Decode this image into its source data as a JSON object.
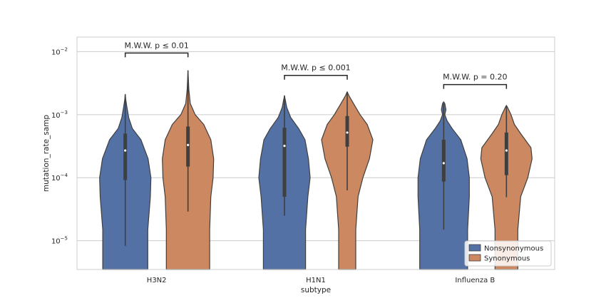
{
  "chart_data": {
    "type": "violin",
    "title": "",
    "xlabel": "subtype",
    "ylabel": "mutation_rate_samp",
    "yscale": "log",
    "ylim": [
      3.5e-06,
      0.017
    ],
    "yticks": [
      {
        "value": 1e-05,
        "base": "10",
        "exp": "−5"
      },
      {
        "value": 0.0001,
        "base": "10",
        "exp": "−4"
      },
      {
        "value": 0.001,
        "base": "10",
        "exp": "−3"
      },
      {
        "value": 0.01,
        "base": "10",
        "exp": "−2"
      }
    ],
    "grid": true,
    "legend_position": "lower-right",
    "categories": [
      "H3N2",
      "H1N1",
      "Influenza B"
    ],
    "series": [
      {
        "name": "Nonsynonymous",
        "color": "#5471a5",
        "violins": [
          {
            "min": 8.3e-06,
            "q1": 9.2e-05,
            "median": 0.00027,
            "q3": 0.0005,
            "max": 0.0021,
            "profile": [
              [
                3.5e-06,
                0.79
              ],
              [
                1.5e-05,
                0.79
              ],
              [
                5e-05,
                0.88
              ],
              [
                0.0001,
                0.9
              ],
              [
                0.0002,
                0.8
              ],
              [
                0.0004,
                0.55
              ],
              [
                0.0006,
                0.25
              ],
              [
                0.0009,
                0.12
              ],
              [
                0.0013,
                0.06
              ],
              [
                0.0017,
                0.02
              ],
              [
                0.0021,
                0.0
              ]
            ]
          },
          {
            "min": 2.5e-05,
            "q1": 5e-05,
            "median": 0.00032,
            "q3": 0.00062,
            "max": 0.002,
            "profile": [
              [
                3.5e-06,
                0.74
              ],
              [
                1.5e-05,
                0.74
              ],
              [
                5e-05,
                0.82
              ],
              [
                0.0001,
                0.9
              ],
              [
                0.0002,
                0.84
              ],
              [
                0.0004,
                0.72
              ],
              [
                0.0006,
                0.5
              ],
              [
                0.0009,
                0.22
              ],
              [
                0.0013,
                0.08
              ],
              [
                0.0017,
                0.03
              ],
              [
                0.002,
                0.0
              ]
            ]
          },
          {
            "min": 1.5e-05,
            "q1": 8.7e-05,
            "median": 0.00017,
            "q3": 0.0004,
            "max": 0.0015,
            "profile": [
              [
                3.5e-06,
                0.84
              ],
              [
                1.5e-05,
                0.84
              ],
              [
                5e-05,
                0.9
              ],
              [
                0.0001,
                0.9
              ],
              [
                0.0002,
                0.82
              ],
              [
                0.0004,
                0.6
              ],
              [
                0.0006,
                0.3
              ],
              [
                0.0008,
                0.12
              ],
              [
                0.001,
                0.04
              ],
              [
                0.0012,
                0.08
              ],
              [
                0.0015,
                0.04
              ],
              [
                0.0016,
                0.0
              ]
            ]
          }
        ]
      },
      {
        "name": "Synonymous",
        "color": "#cc8860",
        "violins": [
          {
            "min": 2.9e-05,
            "q1": 0.00015,
            "median": 0.00033,
            "q3": 0.00065,
            "max": 0.005,
            "profile": [
              [
                3.5e-06,
                0.76
              ],
              [
                1.5e-05,
                0.76
              ],
              [
                5e-05,
                0.8
              ],
              [
                0.0001,
                0.88
              ],
              [
                0.0002,
                0.9
              ],
              [
                0.0004,
                0.8
              ],
              [
                0.0007,
                0.55
              ],
              [
                0.001,
                0.25
              ],
              [
                0.0015,
                0.08
              ],
              [
                0.0025,
                0.03
              ],
              [
                0.005,
                0.0
              ]
            ]
          },
          {
            "min": 6.3e-05,
            "q1": 0.00031,
            "median": 0.00052,
            "q3": 0.00095,
            "max": 0.0023,
            "profile": [
              [
                3.5e-06,
                0.3
              ],
              [
                1.5e-05,
                0.3
              ],
              [
                5e-05,
                0.38
              ],
              [
                0.0001,
                0.55
              ],
              [
                0.0002,
                0.78
              ],
              [
                0.0004,
                0.9
              ],
              [
                0.0007,
                0.7
              ],
              [
                0.001,
                0.45
              ],
              [
                0.0015,
                0.22
              ],
              [
                0.002,
                0.06
              ],
              [
                0.0023,
                0.0
              ]
            ]
          },
          {
            "min": 4.9e-05,
            "q1": 0.00011,
            "median": 0.00027,
            "q3": 0.00052,
            "max": 0.0014,
            "profile": [
              [
                3.5e-06,
                0.4
              ],
              [
                1.5e-05,
                0.4
              ],
              [
                5e-05,
                0.5
              ],
              [
                0.0001,
                0.75
              ],
              [
                0.0002,
                0.9
              ],
              [
                0.0003,
                0.86
              ],
              [
                0.0005,
                0.5
              ],
              [
                0.0007,
                0.28
              ],
              [
                0.001,
                0.16
              ],
              [
                0.0013,
                0.04
              ],
              [
                0.0014,
                0.0
              ]
            ]
          }
        ]
      }
    ],
    "annotations": [
      {
        "category": "H3N2",
        "text": "M.W.W. p ≤ 0.01",
        "y": 0.0095
      },
      {
        "category": "H1N1",
        "text": "M.W.W. p ≤ 0.001",
        "y": 0.0042
      },
      {
        "category": "Influenza B",
        "text": "M.W.W. p = 0.20",
        "y": 0.003
      }
    ]
  }
}
